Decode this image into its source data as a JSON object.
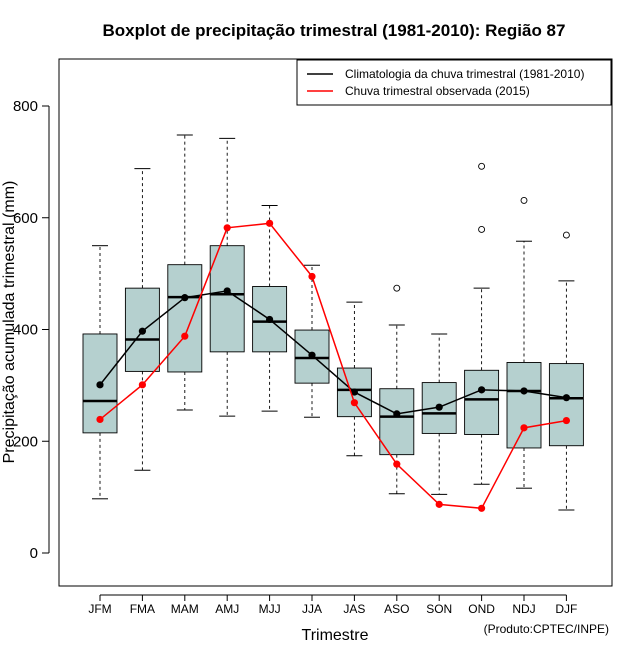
{
  "chart_data": {
    "type": "boxplot",
    "title": "Boxplot de precipitação trimestral (1981-2010): Região 87",
    "xlabel": "Trimestre",
    "ylabel": "Precipitação acumulada trimestral (mm)",
    "ylim": [
      -60,
      880
    ],
    "yticks": [
      0,
      200,
      400,
      600,
      800
    ],
    "categories": [
      "JFM",
      "FMA",
      "MAM",
      "AMJ",
      "MJJ",
      "JJA",
      "JAS",
      "ASO",
      "SON",
      "OND",
      "NDJ",
      "DJF"
    ],
    "boxes": [
      {
        "min": 97,
        "q1": 215,
        "median": 272,
        "q3": 392,
        "max": 550,
        "outliers": []
      },
      {
        "min": 148,
        "q1": 325,
        "median": 382,
        "q3": 474,
        "max": 688,
        "outliers": []
      },
      {
        "min": 256,
        "q1": 324,
        "median": 458,
        "q3": 516,
        "max": 748,
        "outliers": []
      },
      {
        "min": 245,
        "q1": 360,
        "median": 463,
        "q3": 550,
        "max": 742,
        "outliers": []
      },
      {
        "min": 254,
        "q1": 360,
        "median": 414,
        "q3": 477,
        "max": 622,
        "outliers": []
      },
      {
        "min": 243,
        "q1": 304,
        "median": 349,
        "q3": 399,
        "max": 515,
        "outliers": []
      },
      {
        "min": 174,
        "q1": 244,
        "median": 292,
        "q3": 331,
        "max": 449,
        "outliers": []
      },
      {
        "min": 106,
        "q1": 176,
        "median": 244,
        "q3": 294,
        "max": 408,
        "outliers": [
          474
        ]
      },
      {
        "min": 105,
        "q1": 214,
        "median": 250,
        "q3": 305,
        "max": 392,
        "outliers": []
      },
      {
        "min": 123,
        "q1": 212,
        "median": 275,
        "q3": 327,
        "max": 474,
        "outliers": [
          579,
          692
        ]
      },
      {
        "min": 116,
        "q1": 188,
        "median": 290,
        "q3": 341,
        "max": 558,
        "outliers": [
          631
        ]
      },
      {
        "min": 77,
        "q1": 192,
        "median": 277,
        "q3": 339,
        "max": 487,
        "outliers": [
          569
        ]
      }
    ],
    "series": [
      {
        "name": "Climatologia da chuva trimestral (1981-2010)",
        "color": "#000000",
        "values": [
          301,
          397,
          457,
          469,
          418,
          354,
          288,
          249,
          261,
          292,
          290,
          278
        ]
      },
      {
        "name": "Chuva trimestral observada (2015)",
        "color": "#ff0000",
        "values": [
          239,
          301,
          388,
          582,
          590,
          495,
          269,
          159,
          87,
          80,
          224,
          237
        ]
      }
    ],
    "box_color": "#b5d0cf",
    "legend_position": "top-right",
    "footnote": "(Produto:CPTEC/INPE)"
  }
}
